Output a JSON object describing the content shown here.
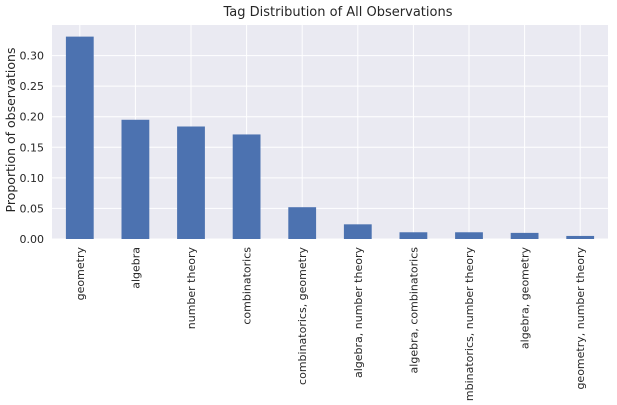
{
  "chart_data": {
    "type": "bar",
    "title": "Tag Distribution of All Observations",
    "xlabel": "",
    "ylabel": "Proportion of observations",
    "categories": [
      "geometry",
      "algebra",
      "number theory",
      "combinatorics",
      "combinatorics, geometry",
      "algebra, number theory",
      "algebra, combinatorics",
      "combinatorics, number theory",
      "algebra, geometry",
      "geometry, number theory"
    ],
    "values": [
      0.331,
      0.195,
      0.184,
      0.171,
      0.052,
      0.024,
      0.011,
      0.011,
      0.01,
      0.005
    ],
    "ylim": [
      0,
      0.35
    ],
    "yticks": [
      0.0,
      0.05,
      0.1,
      0.15,
      0.2,
      0.25,
      0.3
    ],
    "ytick_labels": [
      "0.00",
      "0.05",
      "0.10",
      "0.15",
      "0.20",
      "0.25",
      "0.30"
    ],
    "grid": true,
    "colors": {
      "bar": "#4c72b0",
      "plot_background": "#eaeaf2",
      "grid": "#ffffff",
      "text": "#262626"
    }
  }
}
